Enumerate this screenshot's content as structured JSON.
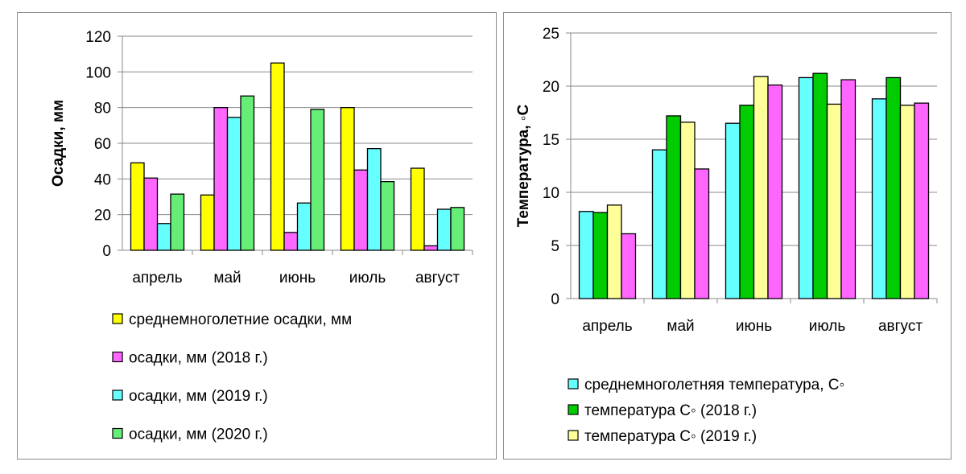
{
  "chart_data": [
    {
      "type": "bar",
      "title": "",
      "xlabel": "",
      "ylabel": "Осадки, мм",
      "ylim": [
        0,
        120
      ],
      "yticks": [
        "0",
        "20",
        "40",
        "60",
        "80",
        "100",
        "120"
      ],
      "gridlines": true,
      "legend_position": "bottom",
      "categories": [
        "апрель",
        "май",
        "июнь",
        "июль",
        "август"
      ],
      "series": [
        {
          "name": "среднемноголетние осадки, мм",
          "color": "#ffff00",
          "values": [
            49,
            31,
            105,
            80,
            46
          ]
        },
        {
          "name": "осадки, мм (2018 г.)",
          "color": "#ff66ff",
          "values": [
            40.5,
            80,
            10,
            45,
            2.5
          ]
        },
        {
          "name": "осадки, мм (2019 г.)",
          "color": "#66ffff",
          "values": [
            15,
            74.5,
            26.5,
            57,
            23
          ]
        },
        {
          "name": "осадки, мм (2020 г.)",
          "color": "#66ee77",
          "values": [
            31.5,
            86.5,
            79,
            38.5,
            24
          ]
        }
      ]
    },
    {
      "type": "bar",
      "title": "",
      "xlabel": "",
      "ylabel": "Температура, ◦С",
      "ylim": [
        0,
        25
      ],
      "yticks": [
        "0",
        "5",
        "10",
        "15",
        "20",
        "25"
      ],
      "gridlines": true,
      "legend_position": "bottom",
      "categories": [
        "апрель",
        "май",
        "июнь",
        "июль",
        "август"
      ],
      "series": [
        {
          "name": "среднемноголетняя температура, С◦",
          "color": "#66ffff",
          "values": [
            8.2,
            14,
            16.5,
            20.8,
            18.8
          ]
        },
        {
          "name": "температура С◦ (2018 г.)",
          "color": "#00cc00",
          "values": [
            8.1,
            17.2,
            18.2,
            21.2,
            20.8
          ]
        },
        {
          "name": "температура С◦ (2019 г.)",
          "color": "#ffff99",
          "values": [
            8.8,
            16.6,
            20.9,
            18.3,
            18.2
          ]
        },
        {
          "name": "",
          "color": "#ff66ff",
          "values": [
            6.1,
            12.2,
            20.1,
            20.6,
            18.4
          ]
        }
      ]
    }
  ]
}
